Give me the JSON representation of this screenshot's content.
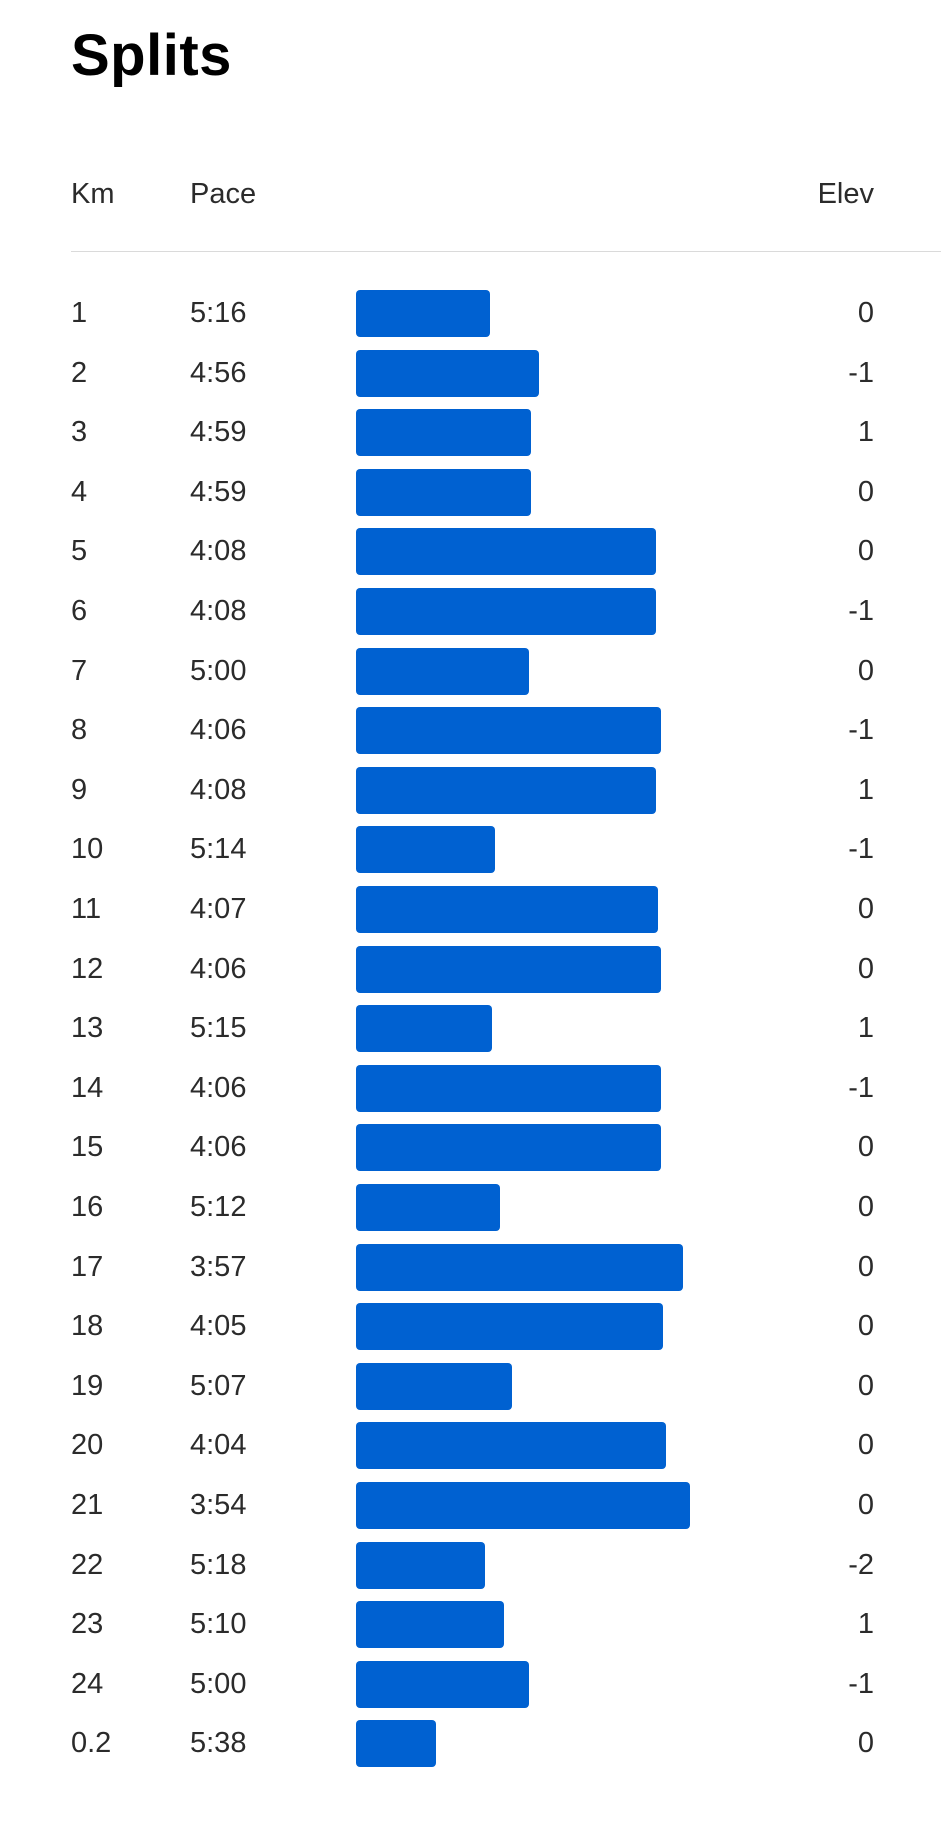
{
  "title": "Splits",
  "headers": {
    "km": "Km",
    "pace": "Pace",
    "elev": "Elev"
  },
  "colors": {
    "bar": "#0061d1",
    "divider": "#dadada"
  },
  "splits": [
    {
      "km": "1",
      "pace": "5:16",
      "elev": "0"
    },
    {
      "km": "2",
      "pace": "4:56",
      "elev": "-1"
    },
    {
      "km": "3",
      "pace": "4:59",
      "elev": "1"
    },
    {
      "km": "4",
      "pace": "4:59",
      "elev": "0"
    },
    {
      "km": "5",
      "pace": "4:08",
      "elev": "0"
    },
    {
      "km": "6",
      "pace": "4:08",
      "elev": "-1"
    },
    {
      "km": "7",
      "pace": "5:00",
      "elev": "0"
    },
    {
      "km": "8",
      "pace": "4:06",
      "elev": "-1"
    },
    {
      "km": "9",
      "pace": "4:08",
      "elev": "1"
    },
    {
      "km": "10",
      "pace": "5:14",
      "elev": "-1"
    },
    {
      "km": "11",
      "pace": "4:07",
      "elev": "0"
    },
    {
      "km": "12",
      "pace": "4:06",
      "elev": "0"
    },
    {
      "km": "13",
      "pace": "5:15",
      "elev": "1"
    },
    {
      "km": "14",
      "pace": "4:06",
      "elev": "-1"
    },
    {
      "km": "15",
      "pace": "4:06",
      "elev": "0"
    },
    {
      "km": "16",
      "pace": "5:12",
      "elev": "0"
    },
    {
      "km": "17",
      "pace": "3:57",
      "elev": "0"
    },
    {
      "km": "18",
      "pace": "4:05",
      "elev": "0"
    },
    {
      "km": "19",
      "pace": "5:07",
      "elev": "0"
    },
    {
      "km": "20",
      "pace": "4:04",
      "elev": "0"
    },
    {
      "km": "21",
      "pace": "3:54",
      "elev": "0"
    },
    {
      "km": "22",
      "pace": "5:18",
      "elev": "-2"
    },
    {
      "km": "23",
      "pace": "5:10",
      "elev": "1"
    },
    {
      "km": "24",
      "pace": "5:00",
      "elev": "-1"
    },
    {
      "km": "0.2",
      "pace": "5:38",
      "elev": "0"
    }
  ]
}
